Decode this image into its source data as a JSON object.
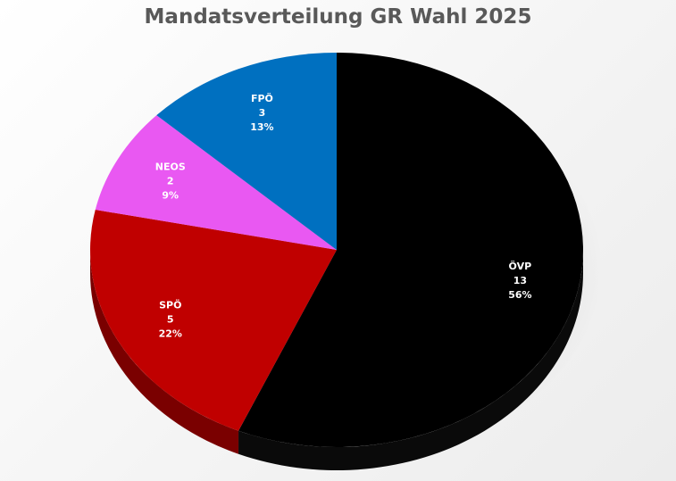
{
  "chart_data": {
    "type": "pie",
    "title": "Mandatsverteilung GR Wahl 2025",
    "slices": [
      {
        "label": "ÖVP",
        "value": 13,
        "percent": "56%",
        "color": "#000000",
        "side_color": "#0a0a0a"
      },
      {
        "label": "SPÖ",
        "value": 5,
        "percent": "22%",
        "color": "#c00000",
        "side_color": "#7a0000"
      },
      {
        "label": "NEOS",
        "value": 2,
        "percent": "9%",
        "color": "#e958f2",
        "side_color": "#a63cad"
      },
      {
        "label": "FPÖ",
        "value": 3,
        "percent": "13%",
        "color": "#0070c0",
        "side_color": "#004a80"
      }
    ],
    "data_labels": "inside",
    "legend": "none",
    "style": "3d"
  }
}
